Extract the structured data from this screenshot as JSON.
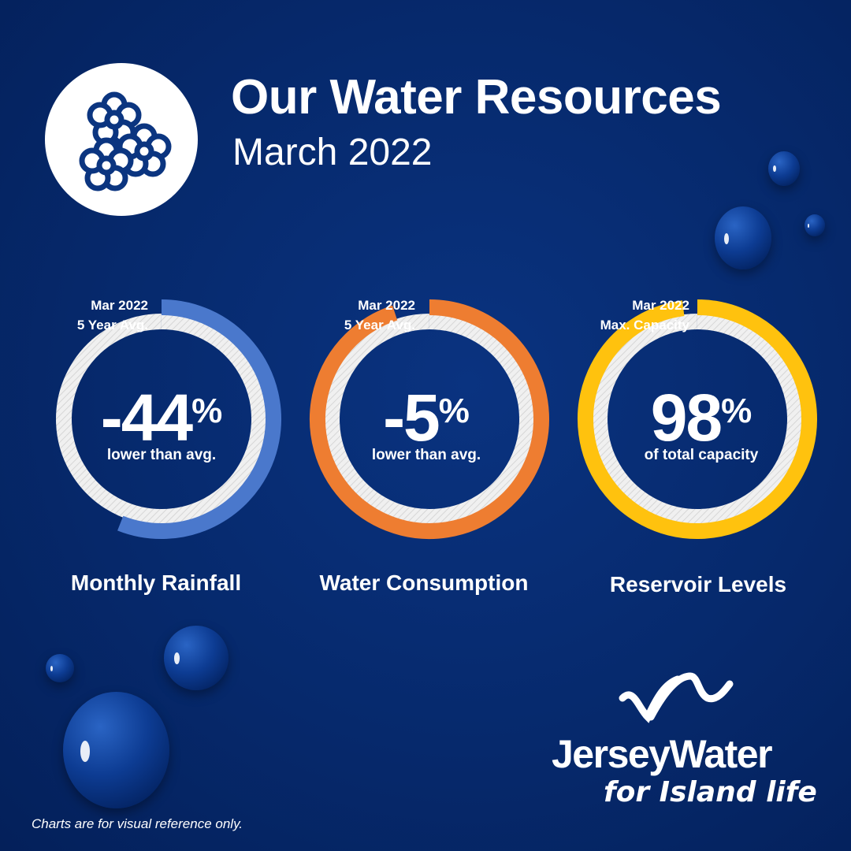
{
  "header": {
    "title": "Our Water Resources",
    "subtitle": "March 2022",
    "icon": "flowers-icon"
  },
  "colors": {
    "background": "#062a70",
    "track": "#ececec",
    "rainfall": "#4a78cc",
    "consumption": "#ee7d31",
    "reservoir": "#ffc20e"
  },
  "chart_data": [
    {
      "type": "pie",
      "name_label": "Monthly Rainfall",
      "value_text": "-44",
      "unit": "%",
      "caption": "lower than avg.",
      "legend": [
        "Mar 2022",
        "5 Year Avg."
      ],
      "mar_2022_fraction": 0.56,
      "reference_fraction": 1.0,
      "color": "#4a78cc"
    },
    {
      "type": "pie",
      "name_label": "Water Consumption",
      "value_text": "-5",
      "unit": "%",
      "caption": "lower than avg.",
      "legend": [
        "Mar 2022",
        "5 Year Avg."
      ],
      "mar_2022_fraction": 0.95,
      "reference_fraction": 1.0,
      "color": "#ee7d31"
    },
    {
      "type": "pie",
      "name_label": "Reservoir Levels",
      "value_text": "98",
      "unit": "%",
      "caption": "of total capacity",
      "legend": [
        "Mar 2022",
        "Max. Capacity"
      ],
      "mar_2022_fraction": 0.98,
      "reference_fraction": 1.0,
      "color": "#ffc20e"
    }
  ],
  "brand": {
    "name": "JerseyWater",
    "tagline": "for Island life"
  },
  "disclaimer": "Charts are for visual reference only."
}
